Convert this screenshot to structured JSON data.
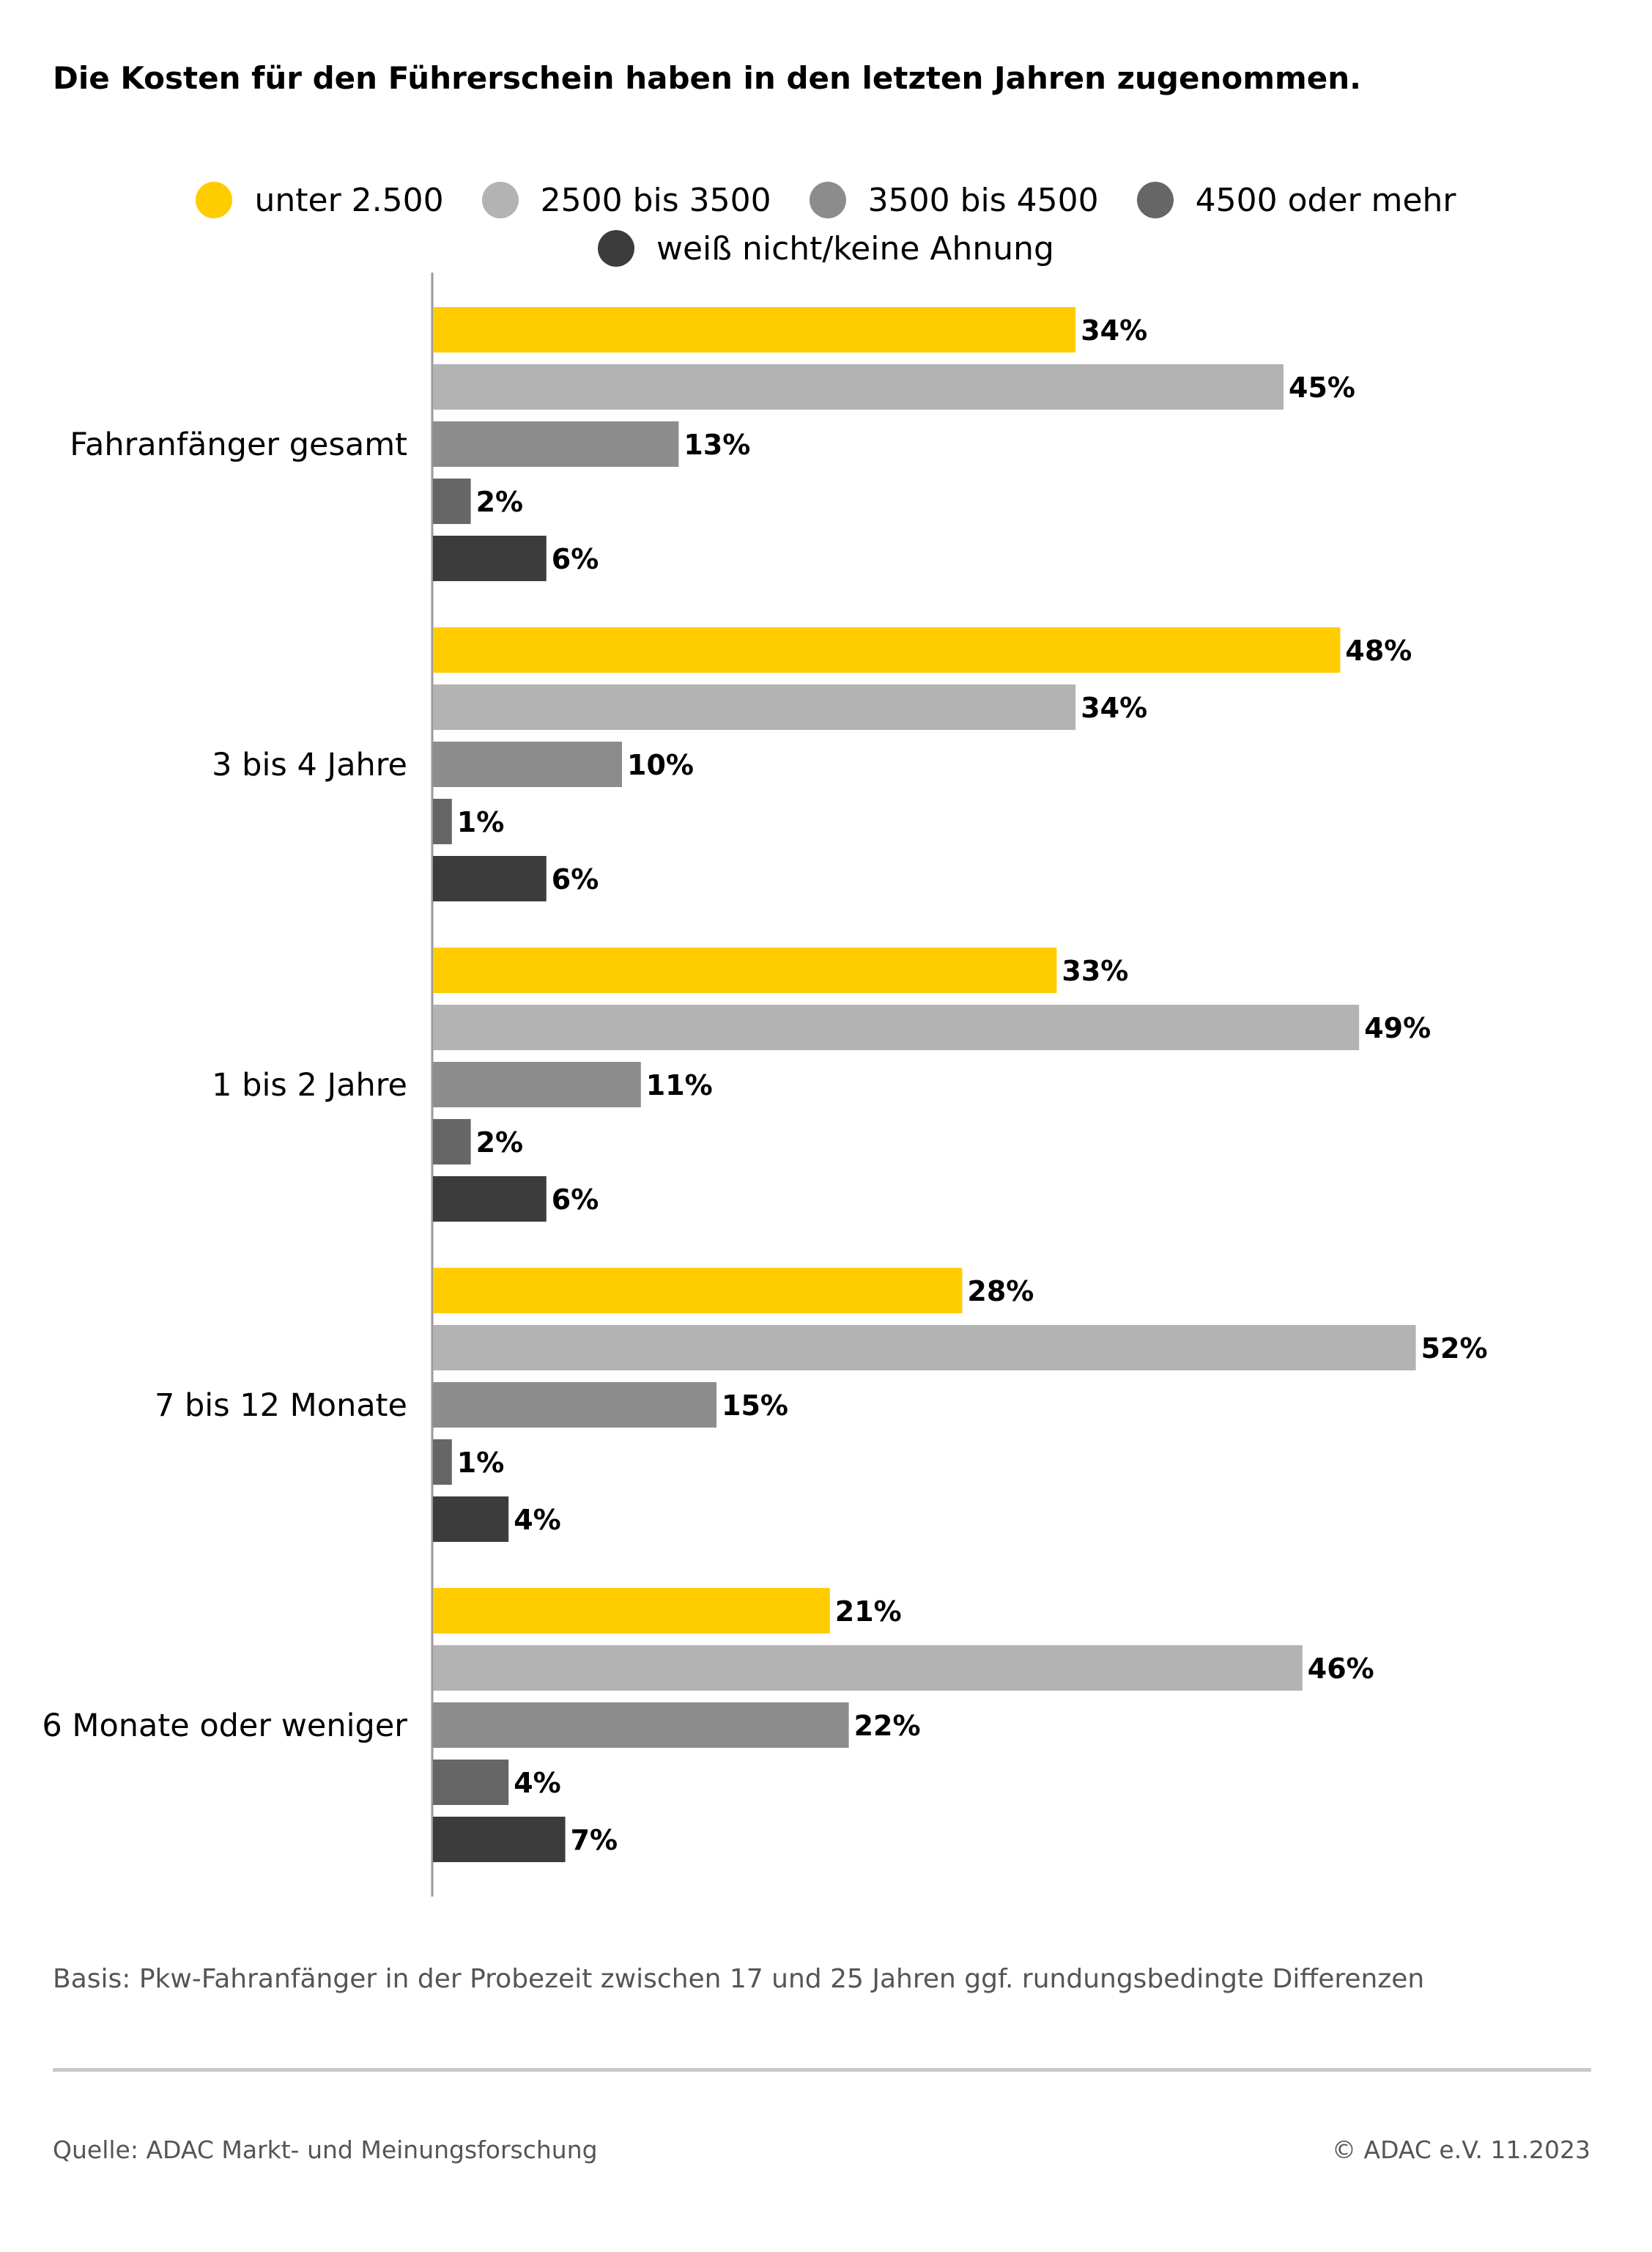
{
  "title": "Die Kosten für den Führerschein haben in den letzten Jahren zugenommen.",
  "legend": {
    "rows": [
      [
        {
          "label": "unter 2.500",
          "color": "#ffcc00"
        },
        {
          "label": "2500 bis 3500",
          "color": "#b3b3b3"
        },
        {
          "label": "3500 bis 4500",
          "color": "#8c8c8c"
        },
        {
          "label": "4500 oder mehr",
          "color": "#666666"
        }
      ],
      [
        {
          "label": "weiß nicht/keine Ahnung",
          "color": "#3c3c3c"
        }
      ]
    ]
  },
  "chart_data": {
    "type": "bar",
    "orientation": "horizontal",
    "title": "Die Kosten für den Führerschein haben in den letzten Jahren zugenommen.",
    "xlabel": "",
    "ylabel": "",
    "xlim": [
      0,
      52
    ],
    "grid": false,
    "legend_position": "top",
    "value_suffix": "%",
    "categories": [
      "Fahranfänger gesamt",
      "3 bis 4 Jahre",
      "1 bis 2 Jahre",
      "7 bis 12 Monate",
      "6 Monate oder weniger"
    ],
    "series": [
      {
        "name": "unter 2.500",
        "color": "#ffcc00",
        "values": [
          34,
          48,
          33,
          28,
          21
        ]
      },
      {
        "name": "2500 bis 3500",
        "color": "#b3b3b3",
        "values": [
          45,
          34,
          49,
          52,
          46
        ]
      },
      {
        "name": "3500 bis 4500",
        "color": "#8c8c8c",
        "values": [
          13,
          10,
          11,
          15,
          22
        ]
      },
      {
        "name": "4500 oder mehr",
        "color": "#666666",
        "values": [
          2,
          1,
          2,
          1,
          4
        ]
      },
      {
        "name": "weiß nicht/keine Ahnung",
        "color": "#3c3c3c",
        "values": [
          6,
          6,
          6,
          4,
          7
        ]
      }
    ]
  },
  "footnote": "Basis: Pkw-Fahranfänger in der Probezeit zwischen 17 und 25 Jahren ggf. rundungsbedingte Differenzen",
  "source": "Quelle: ADAC Markt- und Meinungsforschung",
  "copyright": "© ADAC e.V. 11.2023"
}
